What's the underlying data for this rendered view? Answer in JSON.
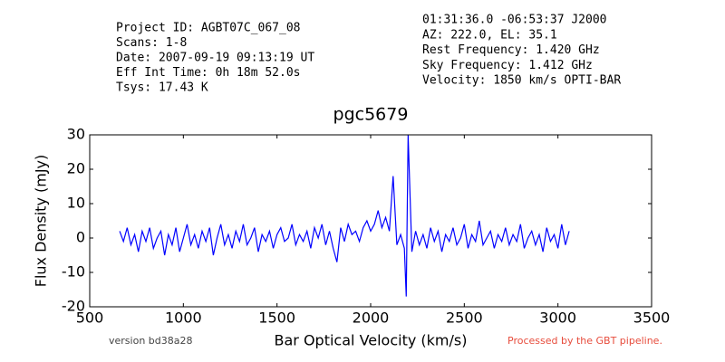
{
  "chart_data": {
    "type": "line",
    "title": "pgc5679",
    "header_left": [
      "Project ID: AGBT07C_067_08",
      "Scans: 1-8",
      "Date: 2007-09-19 09:13:19 UT",
      "Eff Int Time: 0h 18m 52.0s",
      "Tsys: 17.43 K"
    ],
    "header_right": [
      "01:31:36.0 -06:53:37 J2000",
      "AZ: 222.0, EL: 35.1",
      "Rest Frequency:   1.420 GHz",
      "Sky Frequency:    1.412 GHz",
      "Velocity: 1850 km/s OPTI-BAR"
    ],
    "footer_left": "version bd38a28",
    "footer_right": "Processed by the GBT pipeline.",
    "xlabel": "Bar Optical Velocity (km/s)",
    "ylabel": "Flux Density (mJy)",
    "xlim": [
      500,
      3500
    ],
    "xticks": [
      500,
      1000,
      1500,
      2000,
      2500,
      3000,
      3500
    ],
    "ylim": [
      -20,
      30
    ],
    "yticks": [
      -20,
      -10,
      0,
      10,
      20,
      30
    ],
    "x": [
      660,
      680,
      700,
      720,
      740,
      760,
      780,
      800,
      820,
      840,
      860,
      880,
      900,
      920,
      940,
      960,
      980,
      1000,
      1020,
      1040,
      1060,
      1080,
      1100,
      1120,
      1140,
      1160,
      1180,
      1200,
      1220,
      1240,
      1260,
      1280,
      1300,
      1320,
      1340,
      1360,
      1380,
      1400,
      1420,
      1440,
      1460,
      1480,
      1500,
      1520,
      1540,
      1560,
      1580,
      1600,
      1620,
      1640,
      1660,
      1680,
      1700,
      1720,
      1740,
      1760,
      1780,
      1800,
      1820,
      1840,
      1860,
      1880,
      1900,
      1920,
      1940,
      1960,
      1980,
      2000,
      2020,
      2040,
      2060,
      2080,
      2100,
      2120,
      2140,
      2160,
      2180,
      2190,
      2200,
      2220,
      2240,
      2260,
      2280,
      2300,
      2320,
      2340,
      2360,
      2380,
      2400,
      2420,
      2440,
      2460,
      2480,
      2500,
      2520,
      2540,
      2560,
      2580,
      2600,
      2620,
      2640,
      2660,
      2680,
      2700,
      2720,
      2740,
      2760,
      2780,
      2800,
      2820,
      2840,
      2860,
      2880,
      2900,
      2920,
      2940,
      2960,
      2980,
      3000,
      3020,
      3040,
      3060
    ],
    "series": [
      {
        "name": "pgc5679",
        "color": "#0000ff",
        "values": [
          2,
          -1,
          3,
          -2,
          1,
          -4,
          2,
          -1,
          3,
          -3,
          0,
          2,
          -5,
          1,
          -2,
          3,
          -4,
          0,
          4,
          -2,
          1,
          -3,
          2,
          -1,
          3,
          -5,
          0,
          4,
          -2,
          1,
          -3,
          2,
          -1,
          4,
          -2,
          0,
          3,
          -4,
          1,
          -1,
          2,
          -3,
          1,
          3,
          -1,
          0,
          4,
          -2,
          1,
          -1,
          2,
          -3,
          3,
          0,
          4,
          -2,
          2,
          -3,
          -7,
          3,
          -1,
          4,
          1,
          2,
          -1,
          3,
          5,
          2,
          4,
          8,
          3,
          6,
          2,
          18,
          -2,
          1,
          -3,
          -17,
          30,
          -4,
          2,
          -2,
          1,
          -3,
          3,
          -1,
          2,
          -4,
          1,
          -1,
          3,
          -2,
          0,
          4,
          -3,
          1,
          -1,
          5,
          -2,
          0,
          2,
          -3,
          1,
          -1,
          3,
          -2,
          1,
          -1,
          4,
          -3,
          0,
          2,
          -2,
          1,
          -4,
          3,
          -1,
          1,
          -3,
          4,
          -2,
          2
        ]
      }
    ]
  }
}
